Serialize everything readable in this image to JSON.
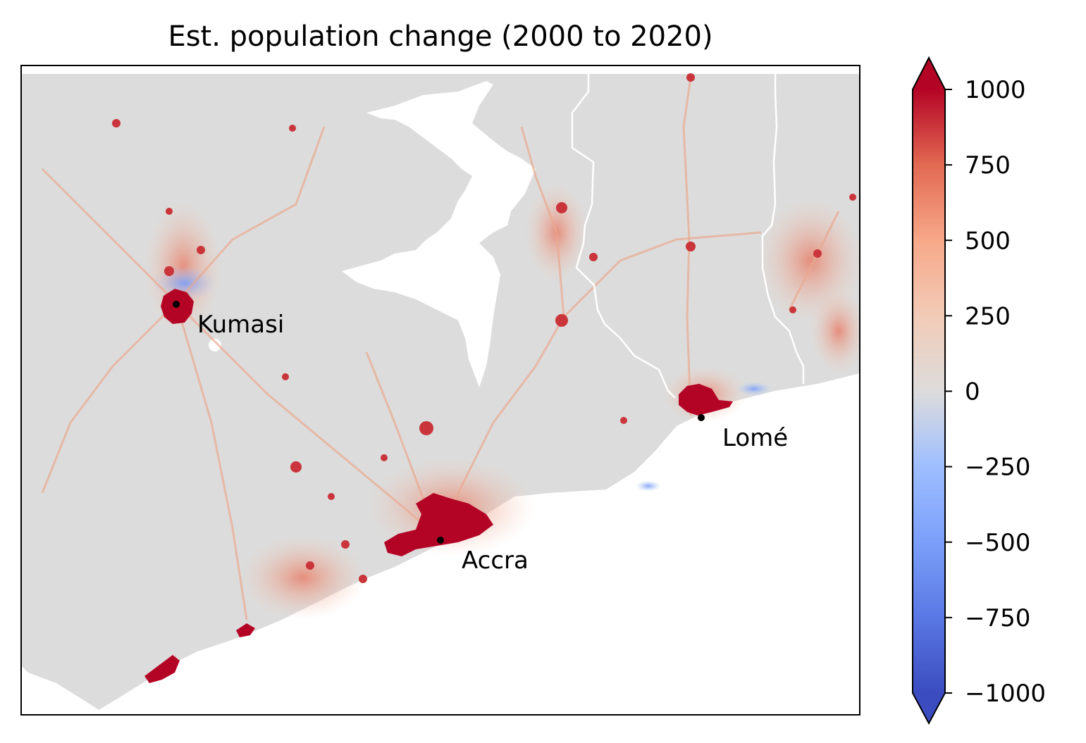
{
  "title": "Est. population change (2000 to 2020)",
  "colors": {
    "background": "#ffffff",
    "land_neutral": "#dcdcdc",
    "water": "#ffffff",
    "border": "#ffffff",
    "high": "#b40426",
    "low": "#3b4cc0"
  },
  "cities": [
    {
      "name": "Kumasi"
    },
    {
      "name": "Accra"
    },
    {
      "name": "Lomé"
    }
  ],
  "colorbar": {
    "colormap": "coolwarm",
    "min": -1000,
    "max": 1000,
    "extend": "both",
    "ticks": [
      {
        "value": 1000,
        "label": "1000"
      },
      {
        "value": 750,
        "label": "750"
      },
      {
        "value": 500,
        "label": "500"
      },
      {
        "value": 250,
        "label": "250"
      },
      {
        "value": 0,
        "label": "0"
      },
      {
        "value": -250,
        "label": "−250"
      },
      {
        "value": -500,
        "label": "−500"
      },
      {
        "value": -750,
        "label": "−750"
      },
      {
        "value": -1000,
        "label": "−1000"
      }
    ]
  }
}
